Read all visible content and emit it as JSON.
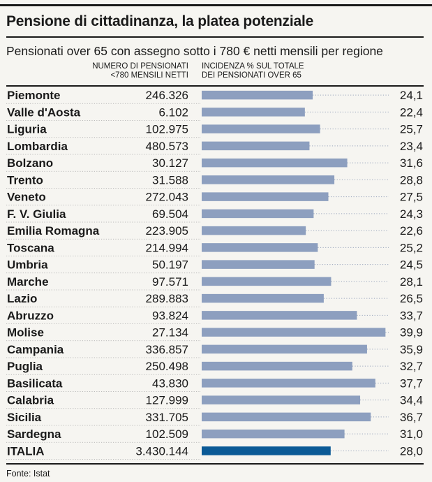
{
  "chart_data": {
    "type": "bar",
    "title": "Pensione di cittadinanza, la platea potenziale",
    "subtitle": "Pensionati over 65 con assegno sotto i 780 € netti mensili per regione",
    "column_headers": {
      "count": [
        "NUMERO DI PENSIONATI",
        "<780 MENSILI NETTI"
      ],
      "share": [
        "INCIDENZA % SUL TOTALE",
        "DEI PENSIONATI OVER 65"
      ]
    },
    "categories": [
      "Piemonte",
      "Valle d'Aosta",
      "Liguria",
      "Lombardia",
      "Bolzano",
      "Trento",
      "Veneto",
      "F. V. Giulia",
      "Emilia Romagna",
      "Toscana",
      "Umbria",
      "Marche",
      "Lazio",
      "Abruzzo",
      "Molise",
      "Campania",
      "Puglia",
      "Basilicata",
      "Calabria",
      "Sicilia",
      "Sardegna",
      "ITALIA"
    ],
    "series": [
      {
        "name": "NUMERO DI PENSIONATI <780 MENSILI NETTI",
        "values": [
          "246.326",
          "6.102",
          "102.975",
          "480.573",
          "30.127",
          "31.588",
          "272.043",
          "69.504",
          "223.905",
          "214.994",
          "50.197",
          "97.571",
          "289.883",
          "93.824",
          "27.134",
          "336.857",
          "250.498",
          "43.830",
          "127.999",
          "331.705",
          "102.509",
          "3.430.144"
        ]
      },
      {
        "name": "INCIDENZA % SUL TOTALE DEI PENSIONATI OVER 65",
        "values": [
          24.1,
          22.4,
          25.7,
          23.4,
          31.6,
          28.8,
          27.5,
          24.3,
          22.6,
          25.2,
          24.5,
          28.1,
          26.5,
          33.7,
          39.9,
          35.9,
          32.7,
          37.7,
          34.4,
          36.7,
          31.0,
          28.0
        ],
        "labels": [
          "24,1",
          "22,4",
          "25,7",
          "23,4",
          "31,6",
          "28,8",
          "27,5",
          "24,3",
          "22,6",
          "25,2",
          "24,5",
          "28,1",
          "26,5",
          "33,7",
          "39,9",
          "35,9",
          "32,7",
          "37,7",
          "34,4",
          "36,7",
          "31,0",
          "28,0"
        ]
      }
    ],
    "xlim": [
      0,
      40
    ],
    "colors": {
      "bar": "#8d9fbf",
      "highlight_bar": "#0b5a96",
      "dots": "#9aa6bd"
    },
    "source": "Fonte: Istat"
  }
}
